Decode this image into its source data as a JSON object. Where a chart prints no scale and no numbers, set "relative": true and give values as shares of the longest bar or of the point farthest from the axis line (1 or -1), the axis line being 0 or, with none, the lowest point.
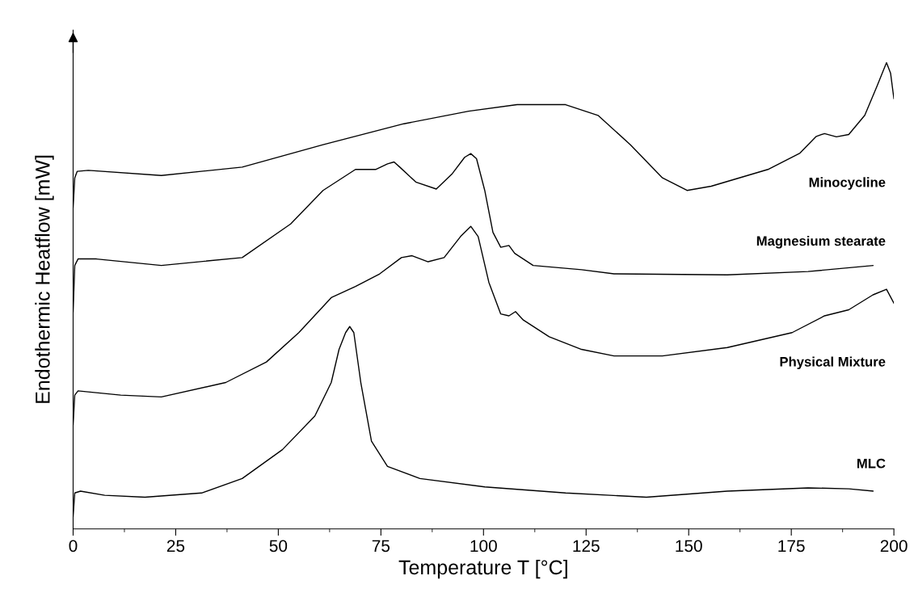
{
  "chart_data": {
    "type": "line",
    "relative": true,
    "xlabel": "Temperature T [°C]",
    "ylabel": "Endothermic Heatflow [mW]",
    "xlim": [
      0,
      200
    ],
    "xticks": [
      0,
      {
        "value": 12.5,
        "label": null
      },
      25,
      {
        "value": 37.5,
        "label": null
      },
      50,
      {
        "value": 62.5,
        "label": null
      },
      75,
      {
        "value": 87.5,
        "label": null
      },
      100,
      {
        "value": 112.5,
        "label": null
      },
      125,
      {
        "value": 137.5,
        "label": null
      },
      150,
      {
        "value": 162.5,
        "label": null
      },
      175,
      {
        "value": 187.5,
        "label": null
      },
      200
    ],
    "grid": false,
    "marker": "none",
    "line_style": "solid",
    "series": [
      {
        "name": "Minocycline",
        "color": "#000000",
        "x": [
          0,
          0.4,
          1,
          3.7,
          21.5,
          41.2,
          60.9,
          80.6,
          96.4,
          108.2,
          112.1,
          120,
          127.9,
          135.8,
          143.6,
          149.6,
          155.5,
          169.3,
          177.1,
          181.1,
          183.1,
          186,
          189,
          192.9,
          195.9,
          198.2,
          199.2,
          200
        ],
        "values": [
          0.69,
          0.753,
          0.767,
          0.769,
          0.758,
          0.776,
          0.824,
          0.869,
          0.896,
          0.91,
          0.91,
          0.91,
          0.887,
          0.824,
          0.753,
          0.726,
          0.735,
          0.771,
          0.806,
          0.842,
          0.848,
          0.841,
          0.846,
          0.887,
          0.95,
          1.0,
          0.977,
          0.923
        ]
      },
      {
        "name": "Magnesium stearate",
        "color": "#000000",
        "x": [
          0,
          0.4,
          1.2,
          5.7,
          21.5,
          41.2,
          53,
          60.9,
          68.8,
          73.7,
          76.6,
          78.2,
          79.6,
          83.5,
          88.5,
          92.4,
          95.4,
          96.9,
          98.3,
          100.3,
          102.3,
          104.2,
          106.2,
          107.6,
          112.1,
          123.9,
          131.8,
          159.4,
          179.1,
          194.9
        ],
        "values": [
          0.466,
          0.565,
          0.579,
          0.579,
          0.565,
          0.582,
          0.654,
          0.726,
          0.771,
          0.771,
          0.783,
          0.787,
          0.776,
          0.744,
          0.729,
          0.762,
          0.797,
          0.805,
          0.794,
          0.726,
          0.636,
          0.604,
          0.608,
          0.591,
          0.565,
          0.556,
          0.547,
          0.545,
          0.552,
          0.565
        ]
      },
      {
        "name": "Physical Mixture",
        "color": "#000000",
        "x": [
          0,
          0.4,
          1.2,
          11.6,
          21.5,
          37.2,
          47.1,
          55,
          62.9,
          68.8,
          74.7,
          80,
          82.6,
          86.5,
          90.4,
          94.4,
          96.9,
          98.7,
          101.3,
          104.2,
          106.2,
          107.8,
          109.7,
          116,
          123.9,
          131.8,
          143.6,
          159.4,
          175.2,
          183.1,
          189,
          194.9,
          198.2,
          200
        ],
        "values": [
          0.224,
          0.287,
          0.296,
          0.287,
          0.283,
          0.314,
          0.358,
          0.421,
          0.496,
          0.52,
          0.547,
          0.582,
          0.586,
          0.573,
          0.582,
          0.627,
          0.649,
          0.627,
          0.529,
          0.461,
          0.457,
          0.466,
          0.448,
          0.412,
          0.385,
          0.371,
          0.371,
          0.389,
          0.421,
          0.457,
          0.47,
          0.502,
          0.514,
          0.484
        ]
      },
      {
        "name": "MLC",
        "color": "#000000",
        "x": [
          0,
          0.4,
          1.8,
          7.7,
          17.5,
          31.3,
          41.2,
          51,
          58.9,
          62.9,
          64.8,
          66.4,
          67.4,
          68.4,
          70.1,
          72.7,
          76.6,
          84.5,
          100.3,
          120,
          139.7,
          159.4,
          179.1,
          189,
          194.9
        ],
        "values": [
          0.027,
          0.077,
          0.081,
          0.072,
          0.068,
          0.077,
          0.108,
          0.17,
          0.242,
          0.314,
          0.385,
          0.421,
          0.434,
          0.421,
          0.314,
          0.188,
          0.134,
          0.108,
          0.09,
          0.077,
          0.068,
          0.081,
          0.088,
          0.086,
          0.081
        ]
      }
    ]
  }
}
